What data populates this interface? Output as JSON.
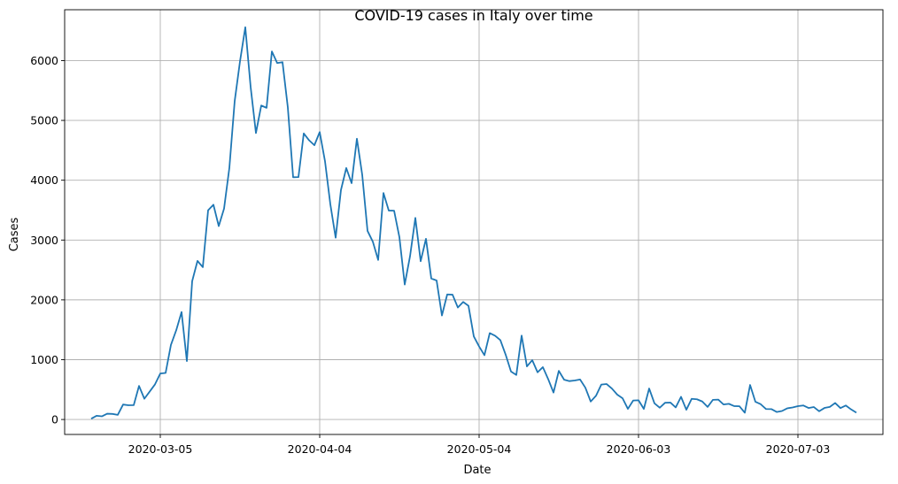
{
  "chart_data": {
    "type": "line",
    "title": "COVID-19 cases in Italy over time",
    "xlabel": "Date",
    "ylabel": "Cases",
    "grid": true,
    "xlim": [
      "2020-02-16",
      "2020-07-19"
    ],
    "ylim": [
      -250,
      6850
    ],
    "x_ticks": [
      "2020-03-05",
      "2020-04-04",
      "2020-05-04",
      "2020-06-03",
      "2020-07-03"
    ],
    "y_ticks": [
      0,
      1000,
      2000,
      3000,
      4000,
      5000,
      6000
    ],
    "series": [
      {
        "color": "#1f77b4",
        "start_date": "2020-02-21",
        "values": [
          14,
          62,
          53,
          97,
          93,
          78,
          250,
          238,
          240,
          561,
          347,
          466,
          587,
          769,
          778,
          1247,
          1492,
          1797,
          977,
          2313,
          2651,
          2547,
          3497,
          3590,
          3233,
          3526,
          4207,
          5322,
          5986,
          6557,
          5560,
          4789,
          5249,
          5210,
          6153,
          5959,
          5974,
          5217,
          4050,
          4053,
          4782,
          4668,
          4585,
          4805,
          4316,
          3599,
          3039,
          3836,
          4204,
          3951,
          4694,
          4092,
          3153,
          2972,
          2667,
          3786,
          3493,
          3491,
          3047,
          2256,
          2729,
          3370,
          2646,
          3021,
          2357,
          2324,
          1739,
          2091,
          2086,
          1872,
          1965,
          1900,
          1389,
          1221,
          1075,
          1444,
          1401,
          1327,
          1083,
          802,
          744,
          1402,
          888,
          992,
          789,
          875,
          675,
          451,
          813,
          665,
          642,
          652,
          669,
          531,
          300,
          397,
          584,
          593,
          516,
          416,
          355,
          178,
          318,
          321,
          177,
          518,
          270,
          197,
          280,
          283,
          202,
          379,
          163,
          346,
          338,
          301,
          210,
          329,
          333,
          251,
          262,
          224,
          221,
          113,
          577,
          296,
          255,
          175,
          174,
          126,
          142,
          187,
          201,
          223,
          235,
          192,
          208,
          138,
          193,
          210,
          276,
          191,
          234,
          169,
          114
        ]
      }
    ]
  }
}
